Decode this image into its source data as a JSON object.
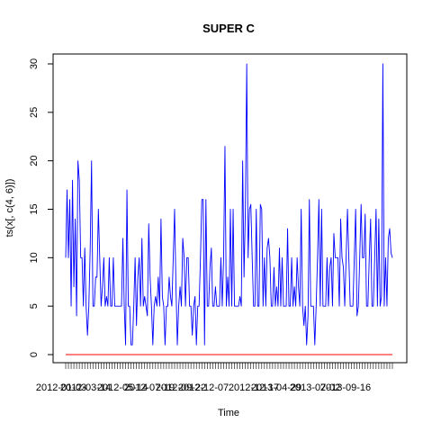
{
  "chart_data": {
    "type": "line",
    "title": "SUPER C",
    "xlabel": "Time",
    "ylabel": "ts(x[, c(4, 6)])",
    "ylim": [
      0,
      30
    ],
    "yticks": [
      0,
      5,
      10,
      15,
      20,
      25,
      30
    ],
    "x_tick_labels": [
      "2012-01-03",
      "2012-03-14",
      "2012-05-14",
      "2012-07-19",
      "2012-09-22",
      "2012-12-07",
      "2012-12-17",
      "2013-04-29",
      "2013-07-02",
      "2013-09-16"
    ],
    "grid": false,
    "legend": "none",
    "series": [
      {
        "color": "#0000ff",
        "values": [
          10,
          17,
          10,
          16,
          5,
          18,
          7,
          14,
          4,
          20,
          18,
          10,
          10,
          5,
          11,
          5,
          2,
          5,
          11,
          20,
          5,
          5,
          8,
          8,
          15,
          10,
          5,
          7,
          10,
          5,
          6,
          5,
          10,
          5,
          5,
          10,
          5,
          5,
          5,
          5,
          5,
          5,
          12,
          5,
          1,
          17,
          5,
          5,
          1,
          1,
          5,
          10,
          3,
          8,
          10,
          5,
          12,
          5,
          6,
          5,
          4,
          13.5,
          8,
          5,
          1,
          5,
          6,
          5,
          8,
          5,
          14,
          6,
          5,
          1,
          5,
          5,
          8,
          6,
          5,
          10,
          15,
          7,
          1,
          5,
          7,
          5,
          12,
          10,
          5,
          10,
          10,
          5,
          5,
          2,
          5,
          6,
          1,
          5,
          5,
          10,
          16,
          16,
          1,
          16,
          5,
          5,
          9,
          11,
          5,
          5,
          7,
          5,
          5,
          5,
          10,
          5,
          10,
          21.5,
          5,
          8,
          5,
          15,
          5,
          15,
          5,
          5,
          5,
          5,
          6,
          5,
          20,
          8,
          15,
          30,
          10,
          15,
          15.5,
          10,
          5,
          5,
          15,
          5,
          5,
          15.5,
          15,
          5,
          10,
          5,
          11,
          12,
          10,
          5,
          5,
          9,
          5,
          7,
          5,
          11,
          5,
          10,
          5,
          5,
          5,
          13,
          5,
          5,
          10,
          5,
          7,
          5,
          10,
          7,
          5,
          15,
          5,
          3,
          5,
          1,
          4,
          16,
          5,
          5,
          5,
          1,
          5,
          10,
          16,
          5,
          15,
          5,
          5,
          5,
          10,
          5,
          9,
          10,
          5,
          12.5,
          10,
          10,
          10,
          5,
          14,
          10,
          9,
          5,
          10,
          15,
          10,
          5,
          5,
          5,
          10,
          15,
          4,
          5,
          10,
          15.5,
          10,
          10,
          14.5,
          5,
          5,
          10,
          14,
          5,
          5,
          10,
          15,
          5,
          14,
          5,
          6,
          30,
          5,
          10,
          5,
          12,
          13,
          10.5,
          10
        ]
      },
      {
        "color": "#ff0000",
        "values": [
          0,
          0
        ]
      }
    ]
  }
}
